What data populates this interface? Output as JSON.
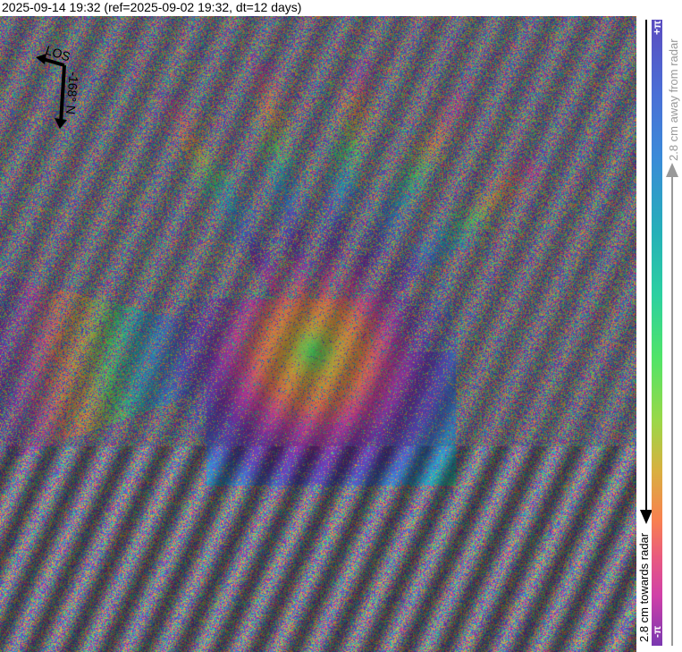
{
  "title": "2025-09-14 19:32 (ref=2025-09-02 19:32, dt=12 days)",
  "compass": {
    "los_label": "LOS",
    "heading_label": "-168° N"
  },
  "colorbar": {
    "top_label": "+π",
    "bottom_label": "-π",
    "away_label": "2.8 cm away from radar",
    "towards_label": "2.8 cm towards radar",
    "colors": [
      "#5b4cc0",
      "#3a8ad8",
      "#25b0b8",
      "#50e468",
      "#d8b040",
      "#f88050",
      "#d040a8",
      "#7a38b0"
    ]
  }
}
